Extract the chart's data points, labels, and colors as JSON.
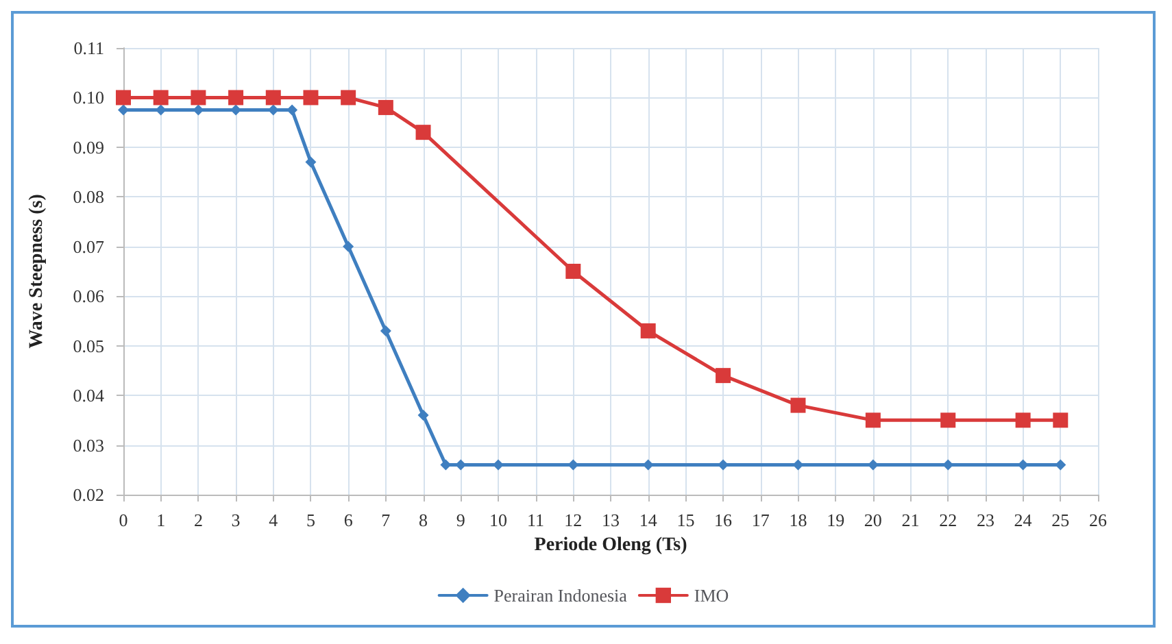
{
  "chart_data": {
    "type": "line",
    "xlabel": "Periode Oleng (Ts)",
    "ylabel": "Wave Steepness (s)",
    "xlim": [
      0,
      26
    ],
    "xticks": [
      0,
      1,
      2,
      3,
      4,
      5,
      6,
      7,
      8,
      9,
      10,
      11,
      12,
      13,
      14,
      15,
      16,
      17,
      18,
      19,
      20,
      21,
      22,
      23,
      24,
      25,
      26
    ],
    "ylim": [
      0.02,
      0.11
    ],
    "yticks": [
      0.02,
      0.03,
      0.04,
      0.05,
      0.06,
      0.07,
      0.08,
      0.09,
      {
        "value": 0.1,
        "label": "0.10"
      },
      0.11
    ],
    "grid": true,
    "legend": "bottom",
    "series": [
      {
        "name": "Perairan Indonesia",
        "color": "#3f7fc0",
        "marker": "diamond",
        "x": [
          0,
          1,
          2,
          3,
          4,
          4.5,
          5,
          6,
          7,
          8,
          8.6,
          9,
          10,
          12,
          14,
          16,
          18,
          20,
          22,
          24,
          25
        ],
        "values": [
          0.0975,
          0.0975,
          0.0975,
          0.0975,
          0.0975,
          0.0975,
          0.087,
          0.07,
          0.053,
          0.036,
          0.026,
          0.026,
          0.026,
          0.026,
          0.026,
          0.026,
          0.026,
          0.026,
          0.026,
          0.026,
          0.026
        ]
      },
      {
        "name": "IMO",
        "color": "#d93a3a",
        "marker": "square",
        "x": [
          0,
          1,
          2,
          3,
          4,
          5,
          6,
          7,
          8,
          12,
          14,
          16,
          18,
          20,
          22,
          24,
          25
        ],
        "values": [
          0.1,
          0.1,
          0.1,
          0.1,
          0.1,
          0.1,
          0.1,
          0.098,
          0.093,
          0.065,
          0.053,
          0.044,
          0.038,
          0.035,
          0.035,
          0.035,
          0.035
        ]
      }
    ]
  }
}
